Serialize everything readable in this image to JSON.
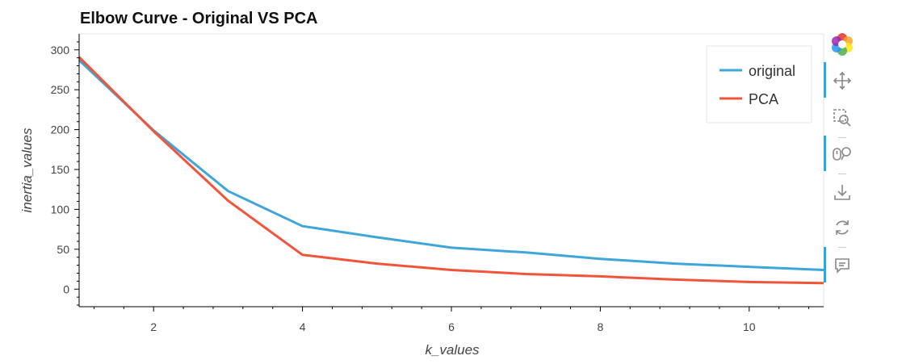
{
  "chart_data": {
    "type": "line",
    "title": "Elbow Curve - Original VS PCA",
    "xlabel": "k_values",
    "ylabel": "inertia_values",
    "x": [
      1,
      2,
      3,
      4,
      5,
      6,
      7,
      8,
      9,
      10,
      11
    ],
    "xlim": [
      1,
      11
    ],
    "ylim": [
      -22,
      320
    ],
    "xticks": [
      2,
      4,
      6,
      8,
      10
    ],
    "yticks": [
      0,
      50,
      100,
      150,
      200,
      250,
      300
    ],
    "grid": false,
    "legend_position": "top-right",
    "series": [
      {
        "name": "original",
        "color": "#3ea6d9",
        "values": [
          287,
          199,
          123,
          79,
          65,
          52,
          46,
          38,
          32,
          28,
          24
        ]
      },
      {
        "name": "PCA",
        "color": "#f0553a",
        "values": [
          291,
          198,
          111,
          43,
          32,
          24,
          19,
          16,
          12,
          9,
          7.5
        ]
      }
    ]
  },
  "toolbar": {
    "tools": [
      {
        "name": "bokeh-logo",
        "active": false
      },
      {
        "name": "pan-tool",
        "active": true
      },
      {
        "name": "box-zoom-tool",
        "active": false
      },
      {
        "name": "wheel-zoom-tool",
        "active": true
      },
      {
        "name": "save-tool",
        "active": false
      },
      {
        "name": "reset-tool",
        "active": false
      },
      {
        "name": "hover-tool",
        "active": true
      }
    ]
  }
}
